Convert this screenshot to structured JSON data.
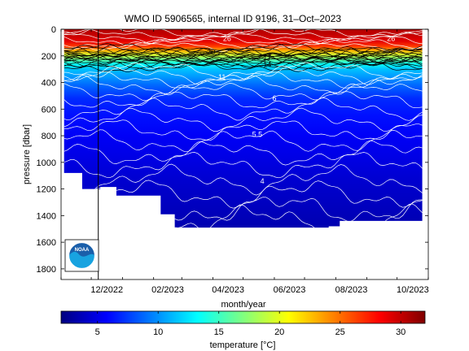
{
  "chart_data": {
    "type": "heatmap",
    "title": "WMO ID 5906565, internal ID 9196, 31–Oct–2023",
    "xlabel": "month/year",
    "ylabel": "pressure [dbar]",
    "x_ticks": [
      "12/2022",
      "02/2023",
      "04/2023",
      "06/2023",
      "08/2023",
      "10/2023"
    ],
    "x_range": [
      "2022-11",
      "2023-11"
    ],
    "y_ticks": [
      0,
      200,
      400,
      600,
      800,
      1000,
      1200,
      1400,
      1600,
      1800
    ],
    "ylim": [
      1880,
      0
    ],
    "y_reversed": true,
    "colorbar": {
      "label": "temperature [°C]",
      "ticks": [
        5,
        10,
        15,
        20,
        25,
        30
      ],
      "range": [
        2,
        32
      ],
      "colormap": "jet"
    },
    "contour_labels": [
      {
        "text": "26",
        "x": "2023-04-15",
        "pressure": 70
      },
      {
        "text": "26",
        "x": "2023-09-25",
        "pressure": 70
      },
      {
        "text": "20",
        "x": "2023-03-30",
        "pressure": 170
      },
      {
        "text": "17",
        "x": "2023-05-25",
        "pressure": 215
      },
      {
        "text": "14",
        "x": "2023-05-25",
        "pressure": 265
      },
      {
        "text": "11",
        "x": "2023-04-10",
        "pressure": 360
      },
      {
        "text": "6",
        "x": "2023-06-01",
        "pressure": 520
      },
      {
        "text": "5.5",
        "x": "2023-05-15",
        "pressure": 790
      },
      {
        "text": "4",
        "x": "2023-05-20",
        "pressure": 1140
      }
    ],
    "profile_bottom": [
      {
        "x": "2022-11-04",
        "pressure": 1080
      },
      {
        "x": "2022-11-22",
        "pressure": 1080
      },
      {
        "x": "2022-11-22",
        "pressure": 1200
      },
      {
        "x": "2022-12-10",
        "pressure": 1200
      },
      {
        "x": "2022-12-10",
        "pressure": 1185
      },
      {
        "x": "2022-12-26",
        "pressure": 1185
      },
      {
        "x": "2022-12-26",
        "pressure": 1250
      },
      {
        "x": "2023-02-08",
        "pressure": 1250
      },
      {
        "x": "2023-02-08",
        "pressure": 1390
      },
      {
        "x": "2023-02-22",
        "pressure": 1390
      },
      {
        "x": "2023-02-22",
        "pressure": 1490
      },
      {
        "x": "2023-07-25",
        "pressure": 1490
      },
      {
        "x": "2023-07-25",
        "pressure": 1480
      },
      {
        "x": "2023-08-05",
        "pressure": 1480
      },
      {
        "x": "2023-08-05",
        "pressure": 1440
      },
      {
        "x": "2023-10-26",
        "pressure": 1440
      }
    ],
    "profile_x_range": [
      "2022-11-04",
      "2023-10-26"
    ],
    "marker_line_x": "2022-12-08",
    "grid": false
  },
  "logo": {
    "text": "NOAA"
  }
}
